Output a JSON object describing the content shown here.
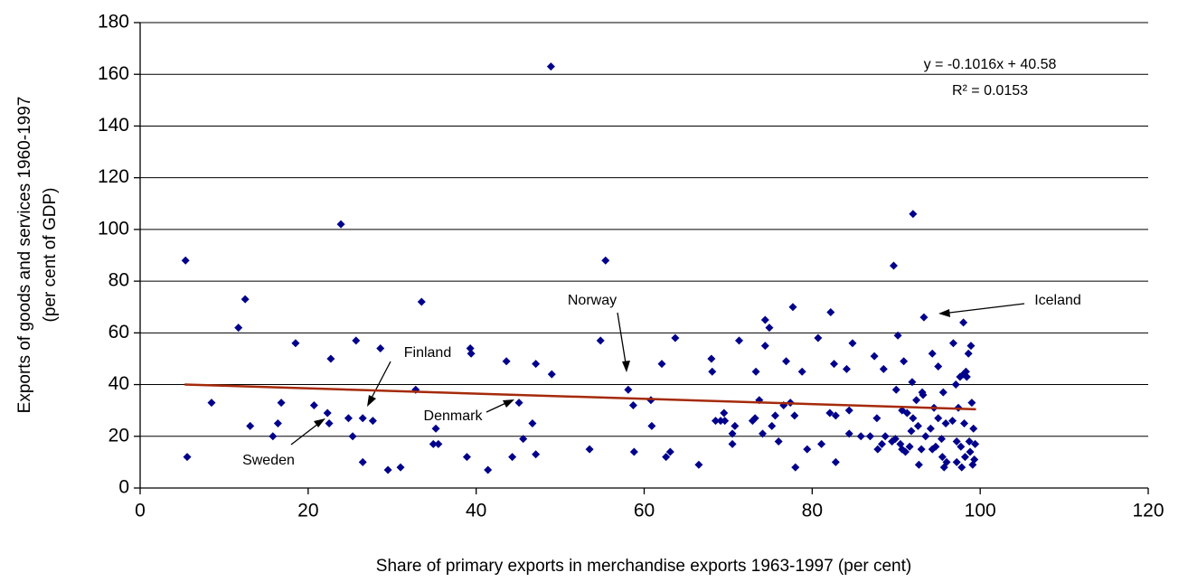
{
  "chart_data": {
    "type": "scatter",
    "x_label": "Share of primary exports in merchandise exports 1963-1997 (per cent)",
    "y_label": [
      "Exports of goods and services 1960-1997",
      "(per cent of GDP)"
    ],
    "xlim": [
      0,
      120
    ],
    "xticks": [
      0,
      20,
      40,
      60,
      80,
      100,
      120
    ],
    "ylim": [
      0,
      180
    ],
    "yticks": [
      0,
      20,
      40,
      60,
      80,
      100,
      120,
      140,
      160,
      180
    ],
    "grid": true,
    "color": "#00008b",
    "x": [
      5.4,
      5.6,
      8.5,
      11.7,
      12.5,
      13.1,
      15.8,
      16.4,
      16.8,
      18.5,
      20.7,
      22.3,
      22.5,
      22.7,
      23.9,
      24.8,
      25.3,
      25.7,
      26.5,
      26.5,
      27.7,
      28.6,
      29.5,
      31.0,
      32.8,
      33.5,
      34.9,
      35.2,
      35.5,
      38.9,
      39.3,
      39.4,
      41.4,
      43.6,
      44.3,
      45.1,
      45.6,
      46.7,
      47.1,
      47.1,
      48.9,
      49.0,
      53.5,
      54.8,
      55.4,
      58.1,
      58.7,
      58.8,
      60.8,
      60.9,
      62.1,
      62.6,
      63.1,
      63.7,
      66.5,
      68.0,
      68.1,
      68.5,
      69.1,
      69.5,
      69.6,
      70.5,
      70.5,
      70.8,
      71.3,
      72.9,
      73.2,
      73.3,
      73.7,
      74.1,
      74.4,
      74.4,
      74.9,
      75.2,
      75.6,
      76.0,
      76.6,
      76.9,
      77.4,
      77.7,
      77.9,
      78.0,
      78.8,
      79.4,
      80.7,
      81.1,
      82.1,
      82.2,
      82.6,
      82.8,
      82.8,
      84.1,
      84.4,
      84.4,
      84.8,
      85.8,
      86.9,
      87.4,
      87.7,
      87.8,
      88.3,
      88.5,
      88.7,
      89.5,
      89.7,
      89.9,
      90.0,
      90.2,
      90.5,
      90.7,
      90.7,
      90.9,
      91.1,
      91.3,
      91.6,
      91.8,
      91.9,
      92.0,
      92.0,
      92.4,
      92.6,
      92.7,
      93.0,
      93.1,
      93.2,
      93.3,
      93.5,
      94.1,
      94.3,
      94.3,
      94.5,
      94.7,
      95.0,
      95.0,
      95.4,
      95.5,
      95.6,
      95.7,
      95.9,
      96.0,
      96.7,
      96.8,
      97.1,
      97.2,
      97.2,
      97.4,
      97.6,
      97.7,
      97.8,
      98.0,
      98.0,
      98.1,
      98.2,
      98.3,
      98.4,
      98.6,
      98.7,
      98.8,
      98.9,
      99.0,
      99.1,
      99.2,
      99.4,
      99.3
    ],
    "y": [
      88,
      12,
      33,
      62,
      73,
      24,
      20,
      25,
      33,
      56,
      32,
      29,
      25,
      50,
      102,
      27,
      20,
      57,
      27,
      10,
      26,
      54,
      7,
      8,
      38,
      72,
      17,
      23,
      17,
      12,
      54,
      52,
      7,
      49,
      12,
      33,
      19,
      25,
      48,
      13,
      163,
      44,
      15,
      57,
      88,
      38,
      32,
      14,
      34,
      24,
      48,
      12,
      14,
      58,
      9,
      50,
      45,
      26,
      26,
      29,
      26,
      21,
      17,
      24,
      57,
      26,
      27,
      45,
      34,
      21,
      65,
      55,
      62,
      24,
      28,
      18,
      32,
      49,
      33,
      70,
      28,
      8,
      45,
      15,
      58,
      17,
      29,
      68,
      48,
      28,
      10,
      46,
      21,
      30,
      56,
      20,
      20,
      51,
      27,
      15,
      17,
      46,
      20,
      18,
      86,
      19,
      38,
      59,
      17,
      15,
      30,
      49,
      14,
      29,
      16,
      22,
      41,
      27,
      106,
      34,
      24,
      9,
      15,
      37,
      36,
      66,
      20,
      23,
      52,
      15,
      31,
      16,
      47,
      27,
      19,
      12,
      37,
      8,
      25,
      10,
      26,
      56,
      40,
      18,
      10,
      31,
      43,
      16,
      8,
      44,
      64,
      25,
      12,
      45,
      43,
      52,
      18,
      14,
      55,
      33,
      9,
      23,
      17,
      11
    ],
    "trendline": {
      "color": "#a52a0a",
      "x": [
        5.3,
        99.5
      ],
      "y": [
        40.04,
        30.47
      ]
    },
    "annotations": [
      "y = -0.1016x + 40.58",
      "R² = 0.0153",
      "Norway",
      "Iceland",
      "Finland",
      "Denmark",
      "Sweden"
    ]
  }
}
